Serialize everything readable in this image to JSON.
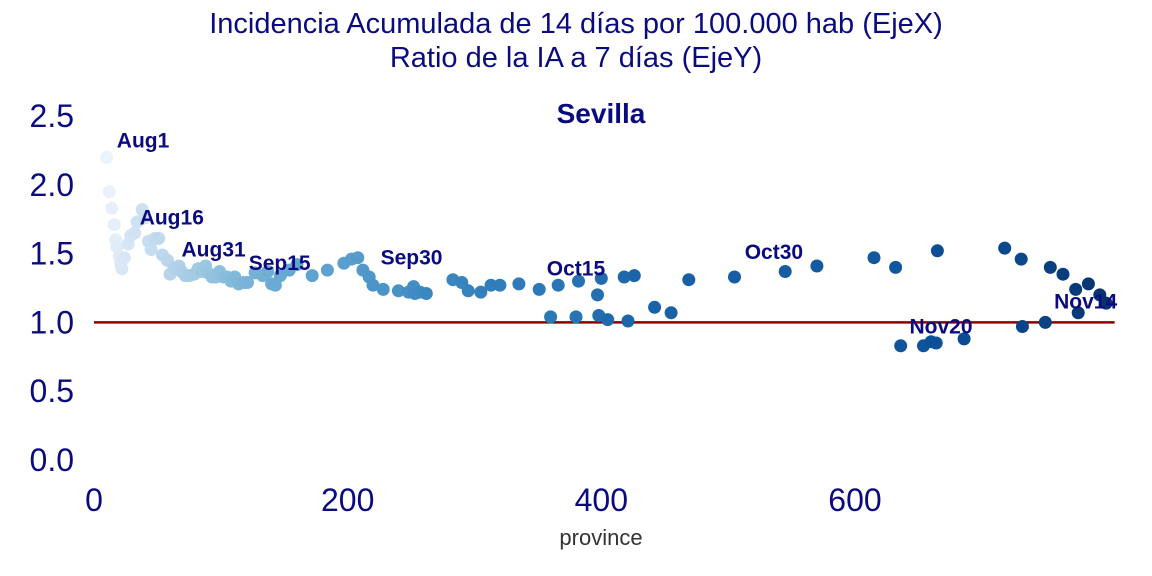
{
  "title_line1": "Incidencia Acumulada de 14 días por 100.000 hab (EjeX)",
  "title_line2": "Ratio de la IA a 7 días (EjeY)",
  "chart_data": {
    "type": "scatter",
    "subtitle": "Sevilla",
    "xlabel": "province",
    "ylabel": "",
    "xlim": [
      0,
      800
    ],
    "ylim": [
      0,
      2.6
    ],
    "xticks": [
      0,
      200,
      400,
      600
    ],
    "yticks": [
      0.0,
      0.5,
      1.0,
      1.5,
      2.0,
      2.5
    ],
    "xtick_labels": [
      "0",
      "200",
      "400",
      "600"
    ],
    "ytick_labels": [
      "0.0",
      "0.5",
      "1.0",
      "1.5",
      "2.0",
      "2.5"
    ],
    "reference_line": {
      "y": 1.0,
      "color": "#8b0000"
    },
    "grid": false,
    "colormap": "Blues",
    "points": [
      {
        "x": 10,
        "y": 2.2
      },
      {
        "x": 12,
        "y": 1.95
      },
      {
        "x": 14,
        "y": 1.83
      },
      {
        "x": 16,
        "y": 1.71
      },
      {
        "x": 17,
        "y": 1.6
      },
      {
        "x": 18,
        "y": 1.55
      },
      {
        "x": 20,
        "y": 1.48
      },
      {
        "x": 21,
        "y": 1.43
      },
      {
        "x": 22,
        "y": 1.39
      },
      {
        "x": 24,
        "y": 1.47
      },
      {
        "x": 27,
        "y": 1.57
      },
      {
        "x": 29,
        "y": 1.63
      },
      {
        "x": 32,
        "y": 1.65
      },
      {
        "x": 34,
        "y": 1.73
      },
      {
        "x": 38,
        "y": 1.82
      },
      {
        "x": 40,
        "y": 1.76
      },
      {
        "x": 43,
        "y": 1.59
      },
      {
        "x": 45,
        "y": 1.53
      },
      {
        "x": 48,
        "y": 1.61
      },
      {
        "x": 51,
        "y": 1.61
      },
      {
        "x": 54,
        "y": 1.49
      },
      {
        "x": 58,
        "y": 1.45
      },
      {
        "x": 60,
        "y": 1.35
      },
      {
        "x": 63,
        "y": 1.39
      },
      {
        "x": 67,
        "y": 1.41
      },
      {
        "x": 69,
        "y": 1.37
      },
      {
        "x": 72,
        "y": 1.34
      },
      {
        "x": 75,
        "y": 1.34
      },
      {
        "x": 79,
        "y": 1.35
      },
      {
        "x": 82,
        "y": 1.39
      },
      {
        "x": 85,
        "y": 1.37
      },
      {
        "x": 88,
        "y": 1.41
      },
      {
        "x": 90,
        "y": 1.36
      },
      {
        "x": 93,
        "y": 1.33
      },
      {
        "x": 96,
        "y": 1.33
      },
      {
        "x": 99,
        "y": 1.37
      },
      {
        "x": 102,
        "y": 1.33
      },
      {
        "x": 105,
        "y": 1.33
      },
      {
        "x": 108,
        "y": 1.3
      },
      {
        "x": 111,
        "y": 1.33
      },
      {
        "x": 114,
        "y": 1.28
      },
      {
        "x": 118,
        "y": 1.29
      },
      {
        "x": 121,
        "y": 1.29
      },
      {
        "x": 127,
        "y": 1.36
      },
      {
        "x": 133,
        "y": 1.34
      },
      {
        "x": 137,
        "y": 1.37
      },
      {
        "x": 140,
        "y": 1.28
      },
      {
        "x": 143,
        "y": 1.27
      },
      {
        "x": 147,
        "y": 1.34
      },
      {
        "x": 154,
        "y": 1.38
      },
      {
        "x": 160,
        "y": 1.42
      },
      {
        "x": 172,
        "y": 1.34
      },
      {
        "x": 184,
        "y": 1.38
      },
      {
        "x": 197,
        "y": 1.43
      },
      {
        "x": 203,
        "y": 1.46
      },
      {
        "x": 208,
        "y": 1.47
      },
      {
        "x": 212,
        "y": 1.38
      },
      {
        "x": 217,
        "y": 1.33
      },
      {
        "x": 220,
        "y": 1.27
      },
      {
        "x": 228,
        "y": 1.24
      },
      {
        "x": 240,
        "y": 1.23
      },
      {
        "x": 248,
        "y": 1.22
      },
      {
        "x": 252,
        "y": 1.26
      },
      {
        "x": 253,
        "y": 1.21
      },
      {
        "x": 257,
        "y": 1.22
      },
      {
        "x": 262,
        "y": 1.21
      },
      {
        "x": 283,
        "y": 1.31
      },
      {
        "x": 290,
        "y": 1.29
      },
      {
        "x": 295,
        "y": 1.23
      },
      {
        "x": 305,
        "y": 1.22
      },
      {
        "x": 313,
        "y": 1.27
      },
      {
        "x": 320,
        "y": 1.27
      },
      {
        "x": 335,
        "y": 1.28
      },
      {
        "x": 351,
        "y": 1.24
      },
      {
        "x": 360,
        "y": 1.04
      },
      {
        "x": 366,
        "y": 1.27
      },
      {
        "x": 380,
        "y": 1.04
      },
      {
        "x": 382,
        "y": 1.3
      },
      {
        "x": 397,
        "y": 1.2
      },
      {
        "x": 398,
        "y": 1.05
      },
      {
        "x": 400,
        "y": 1.32
      },
      {
        "x": 405,
        "y": 1.02
      },
      {
        "x": 418,
        "y": 1.33
      },
      {
        "x": 421,
        "y": 1.01
      },
      {
        "x": 426,
        "y": 1.34
      },
      {
        "x": 442,
        "y": 1.11
      },
      {
        "x": 455,
        "y": 1.07
      },
      {
        "x": 469,
        "y": 1.31
      },
      {
        "x": 505,
        "y": 1.33
      },
      {
        "x": 545,
        "y": 1.37
      },
      {
        "x": 570,
        "y": 1.41
      },
      {
        "x": 615,
        "y": 1.47
      },
      {
        "x": 632,
        "y": 1.4
      },
      {
        "x": 636,
        "y": 0.83
      },
      {
        "x": 654,
        "y": 0.83
      },
      {
        "x": 660,
        "y": 0.86
      },
      {
        "x": 664,
        "y": 0.85
      },
      {
        "x": 665,
        "y": 1.52
      },
      {
        "x": 686,
        "y": 0.88
      },
      {
        "x": 718,
        "y": 1.54
      },
      {
        "x": 731,
        "y": 1.46
      },
      {
        "x": 732,
        "y": 0.97
      },
      {
        "x": 750,
        "y": 1.0
      },
      {
        "x": 754,
        "y": 1.4
      },
      {
        "x": 764,
        "y": 1.35
      },
      {
        "x": 774,
        "y": 1.24
      },
      {
        "x": 776,
        "y": 1.07
      },
      {
        "x": 784,
        "y": 1.28
      },
      {
        "x": 793,
        "y": 1.2
      },
      {
        "x": 798,
        "y": 1.14
      }
    ],
    "annotations": [
      {
        "label": "Aug1",
        "x": 18,
        "y": 2.27
      },
      {
        "label": "Aug16",
        "x": 36,
        "y": 1.71
      },
      {
        "label": "Aug31",
        "x": 69,
        "y": 1.48
      },
      {
        "label": "Sep15",
        "x": 122,
        "y": 1.38
      },
      {
        "label": "Sep30",
        "x": 226,
        "y": 1.42
      },
      {
        "label": "Oct15",
        "x": 357,
        "y": 1.34
      },
      {
        "label": "Oct30",
        "x": 513,
        "y": 1.46
      },
      {
        "label": "Nov14",
        "x": 757,
        "y": 1.1
      },
      {
        "label": "Nov20",
        "x": 643,
        "y": 0.92
      }
    ]
  }
}
